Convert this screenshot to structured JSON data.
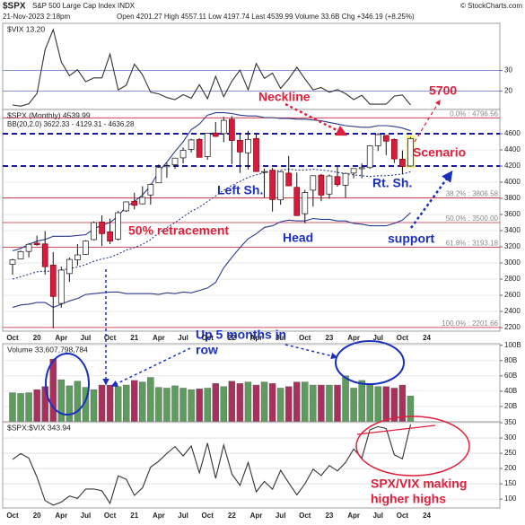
{
  "header": {
    "symbol": "$SPX",
    "name": "S&P 500 Large Cap Index INDX",
    "source": "© StockCharts.com",
    "date": "21-Nov-2023 2:18pm",
    "quote": "Open 4201.27 High 4557.11 Low 4197.74 Last 4539.99 Volume 33.6B Chg +346.19 (+8.25%)"
  },
  "chart_data": [
    {
      "type": "line",
      "label": "$VIX 13.20",
      "color": "#333333",
      "grid_color": "#4050b0",
      "values": [
        13.2,
        12.6,
        13.8,
        18.8,
        40.1,
        50,
        34.2,
        27.5,
        30.4,
        24.5,
        26.4,
        26.4,
        38.0,
        20.6,
        22.8,
        33.1,
        27.9,
        19.4,
        18.6,
        16.8,
        15.8,
        18.2,
        16.5,
        23.1,
        16.3,
        27.2,
        17.2,
        24.8,
        30.2,
        20.6,
        33.4,
        26.2,
        28.7,
        21.3,
        25.9,
        31.6,
        25.9,
        20.6,
        21.7,
        19.4,
        20.7,
        18.7,
        15.8,
        17.9,
        13.6,
        13.6,
        13.6,
        17.5,
        18.1,
        13.2,
        null,
        null
      ],
      "ylim": [
        11,
        53
      ],
      "yticks": [
        20,
        30
      ]
    },
    {
      "type": "candlestick",
      "label": "$SPX (Monthly) 4539.99",
      "indicator": "BB(20,2.0) 3622.33 - 4129.31 - 4636.28",
      "categories": [
        "Oct",
        null,
        null,
        "20",
        null,
        null,
        "Apr",
        null,
        null,
        "Jul",
        null,
        null,
        "Oct",
        null,
        null,
        "21",
        null,
        null,
        "Apr",
        null,
        null,
        "Jul",
        null,
        null,
        "Oct",
        null,
        null,
        "22",
        null,
        null,
        "Apr",
        null,
        null,
        "Jul",
        null,
        null,
        "Oct",
        null,
        null,
        "23",
        null,
        null,
        "Apr",
        null,
        null,
        "Jul",
        null,
        null,
        "Oct",
        null,
        null,
        "24"
      ],
      "open": [
        2983,
        3050,
        3143,
        3245,
        3236,
        2974,
        2499,
        2869,
        3038,
        3106,
        3289,
        3508,
        3385,
        3296,
        3645,
        3764,
        3732,
        3842,
        3992,
        4191,
        4216,
        4301,
        4407,
        4529,
        4317,
        4610,
        4602,
        4779,
        4519,
        4364,
        4540,
        4131,
        4149,
        3781,
        4112,
        3936,
        3610,
        3901,
        4087,
        3853,
        4070,
        3963,
        4113,
        4167,
        4181,
        4450,
        4579,
        4530,
        4285,
        4201.27,
        null,
        null
      ],
      "high": [
        3050,
        3154,
        3248,
        3338,
        3394,
        3136,
        2954,
        3068,
        3233,
        3280,
        3514,
        3588,
        3550,
        3646,
        3760,
        3870,
        3950,
        3983,
        4219,
        4238,
        4302,
        4430,
        4538,
        4546,
        4608,
        4744,
        4809,
        4818,
        4595,
        4637,
        4593,
        4169,
        4177,
        4140,
        4325,
        4119,
        3905,
        4080,
        4101,
        4095,
        4195,
        4110,
        4170,
        4232,
        4458,
        4607,
        4584,
        4541,
        4393,
        4557.11,
        null,
        null
      ],
      "low": [
        2856,
        3050,
        3070,
        3214,
        2855,
        2192,
        2447,
        2767,
        2966,
        3101,
        3280,
        3209,
        3233,
        3279,
        3633,
        3663,
        3725,
        3723,
        3992,
        4056,
        4165,
        4233,
        4368,
        4305,
        4279,
        4560,
        4495,
        4223,
        4115,
        4157,
        4126,
        3811,
        3637,
        3721,
        3955,
        3585,
        3492,
        3698,
        3764,
        3795,
        3943,
        3809,
        4049,
        4048,
        4166,
        4385,
        4335,
        4238,
        4104,
        4197.74,
        null,
        null
      ],
      "close": [
        3038,
        3141,
        3231,
        3226,
        2954,
        2585,
        2912,
        3044,
        3100,
        3271,
        3500,
        3363,
        3270,
        3622,
        3756,
        3714,
        3811,
        3973,
        4181,
        4204,
        4298,
        4395,
        4523,
        4308,
        4605,
        4567,
        4766,
        4516,
        4374,
        4530,
        4132,
        4132,
        3785,
        4130,
        3955,
        3586,
        3872,
        4080,
        3840,
        4077,
        3970,
        4109,
        4169,
        4180,
        4450,
        4589,
        4508,
        4288,
        4194,
        4539.99,
        null,
        null
      ],
      "up_color": "#ffffff",
      "down_color": "#d81b3c",
      "bands": [
        {
          "color": "#2b3a8c",
          "values": [
            3150,
            3180,
            3230,
            3270,
            3290,
            3330,
            3330,
            3330,
            3340,
            3350,
            3420,
            3470,
            3500,
            3580,
            3700,
            3760,
            3840,
            3960,
            4130,
            4250,
            4380,
            4500,
            4650,
            4720,
            4830,
            4860,
            4860,
            4850,
            4830,
            4820,
            4820,
            4800,
            4800,
            4790,
            4790,
            4780,
            4780,
            4770,
            4760,
            4740,
            4720,
            4700,
            4690,
            4680,
            4680,
            4700,
            4700,
            4690,
            4670,
            4636.28,
            null,
            null
          ]
        },
        {
          "color": "#2b3a8c",
          "dashed": true,
          "values": [
            2800,
            2830,
            2860,
            2890,
            2900,
            2890,
            2910,
            2930,
            2950,
            2980,
            3020,
            3050,
            3070,
            3110,
            3160,
            3190,
            3230,
            3290,
            3370,
            3440,
            3500,
            3570,
            3640,
            3690,
            3760,
            3830,
            3900,
            3960,
            4010,
            4060,
            4090,
            4120,
            4130,
            4150,
            4160,
            4150,
            4150,
            4160,
            4150,
            4140,
            4120,
            4110,
            4090,
            4080,
            4070,
            4080,
            4080,
            4090,
            4100,
            4129.31,
            null,
            null
          ]
        },
        {
          "color": "#2b3a8c",
          "values": [
            2450,
            2480,
            2490,
            2510,
            2510,
            2450,
            2490,
            2530,
            2560,
            2610,
            2620,
            2630,
            2640,
            2640,
            2620,
            2620,
            2620,
            2620,
            2610,
            2630,
            2620,
            2640,
            2630,
            2660,
            2690,
            2760,
            2940,
            3070,
            3190,
            3300,
            3360,
            3440,
            3460,
            3510,
            3530,
            3520,
            3520,
            3550,
            3540,
            3540,
            3520,
            3520,
            3490,
            3480,
            3460,
            3460,
            3460,
            3490,
            3530,
            3622.33,
            null,
            null
          ]
        }
      ],
      "ylim": [
        2156,
        4900
      ],
      "yticks": [
        2200,
        2400,
        2600,
        2800,
        3000,
        3200,
        3400,
        3600,
        3800,
        4000,
        4200,
        4400,
        4600
      ],
      "fib_color": "#d0203a",
      "fib_levels": [
        {
          "value": 4796.56,
          "label": "0.0% : 4796.56"
        },
        {
          "value": 3806.58,
          "label": "38.2% : 3806.58"
        },
        {
          "value": 3500,
          "label": "50.0% : 3500.00"
        },
        {
          "value": 3193.18,
          "label": "61.8% : 3193.18"
        },
        {
          "value": 2201.66,
          "label": "100.0% : 2201.66"
        }
      ],
      "dashed_lines": [
        4600,
        4200
      ],
      "dashed_color": "#1a1aa0",
      "annotations": [
        {
          "lines": [
            "Neckline"
          ],
          "color": "#e0203a"
        },
        {
          "lines": [
            "5700"
          ],
          "color": "#e0203a"
        },
        {
          "lines": [
            "Scenario"
          ],
          "color": "#e0203a"
        },
        {
          "lines": [
            "Left Sh."
          ],
          "color": "#1a2fc0"
        },
        {
          "lines": [
            "Rt. Sh."
          ],
          "color": "#1a2fc0"
        },
        {
          "lines": [
            "Head"
          ],
          "color": "#1a2fc0"
        },
        {
          "lines": [
            "support"
          ],
          "color": "#1a2fc0"
        },
        {
          "lines": [
            "50% retracement"
          ],
          "color": "#e0203a"
        }
      ]
    },
    {
      "type": "bar",
      "label": "Volume 33,607,798,784",
      "up_color": "#5e9c5e",
      "down_color": "#a8305a",
      "values": [
        38,
        37,
        38,
        42,
        46,
        82,
        55,
        47,
        53,
        45,
        42,
        48,
        48,
        46,
        48,
        54,
        52,
        58,
        45,
        44,
        47,
        44,
        42,
        43,
        44,
        50,
        46,
        53,
        50,
        52,
        48,
        52,
        50,
        44,
        46,
        52,
        52,
        48,
        48,
        48,
        48,
        60,
        44,
        54,
        48,
        46,
        46,
        44,
        48,
        33.6,
        null,
        null
      ],
      "ylim": [
        0,
        102
      ],
      "yticks": [
        {
          "value": 20,
          "label": "20B"
        },
        {
          "value": 40,
          "label": "40B"
        },
        {
          "value": 60,
          "label": "60B"
        },
        {
          "value": 80,
          "label": "80B"
        },
        {
          "value": 100,
          "label": "100B"
        }
      ],
      "annotations": [
        {
          "lines": [
            "Up 5 months in",
            "row"
          ],
          "color": "#1a2fc0"
        }
      ]
    },
    {
      "type": "line",
      "label": "$SPX:$VIX 343.94",
      "color": "#333333",
      "grid_color": "#cccccc",
      "values": [
        230,
        249,
        234,
        172,
        95,
        80,
        90,
        110,
        102,
        133,
        133,
        127,
        86,
        176,
        165,
        112,
        137,
        205,
        224,
        250,
        272,
        241,
        274,
        186,
        283,
        168,
        277,
        182,
        145,
        220,
        124,
        158,
        132,
        194,
        153,
        114,
        150,
        198,
        177,
        210,
        192,
        220,
        264,
        234,
        327,
        337,
        331,
        245,
        232,
        343.94,
        null,
        null
      ],
      "ylim": [
        71,
        353
      ],
      "yticks": [
        100,
        150,
        200,
        250,
        300,
        350
      ],
      "annotations": [
        {
          "lines": [
            "SPX/VIX making",
            "higher highs"
          ],
          "color": "#e0203a"
        }
      ]
    }
  ]
}
